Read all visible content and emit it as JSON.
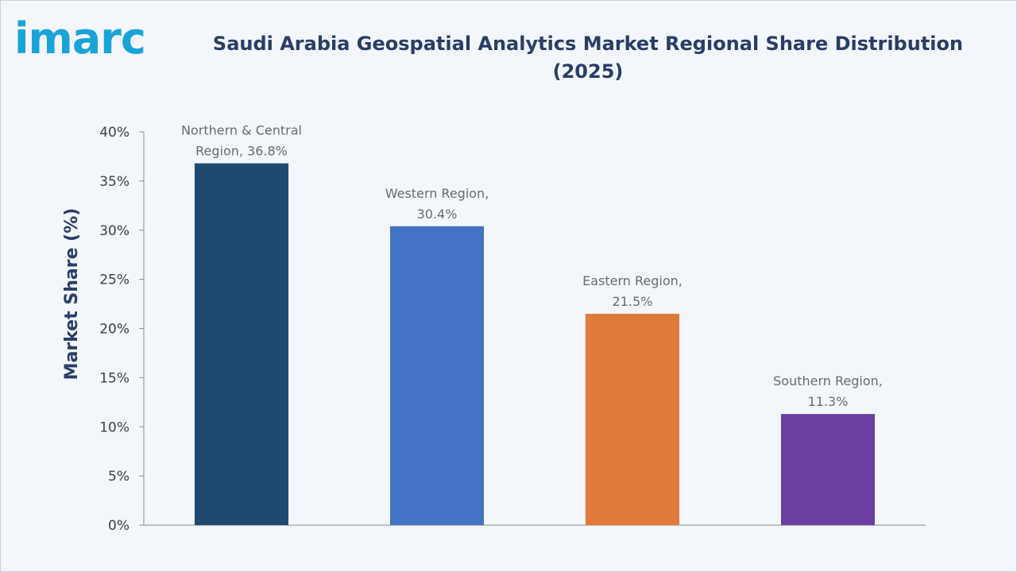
{
  "brand": {
    "logo_text": "imarc"
  },
  "chart_data": {
    "type": "bar",
    "title": "Saudi Arabia Geospatial Analytics Market Regional Share Distribution (2025)",
    "xlabel": "",
    "ylabel": "Market Share (%)",
    "ylim": [
      0,
      40
    ],
    "yticks": [
      0,
      5,
      10,
      15,
      20,
      25,
      30,
      35,
      40
    ],
    "ytick_labels": [
      "0%",
      "5%",
      "10%",
      "15%",
      "20%",
      "25%",
      "30%",
      "35%",
      "40%"
    ],
    "categories": [
      "Northern & Central Region",
      "Western Region",
      "Eastern Region",
      "Southern Region"
    ],
    "values": [
      36.8,
      30.4,
      21.5,
      11.3
    ],
    "data_labels": [
      [
        "Northern & Central",
        "Region, 36.8%"
      ],
      [
        "Western Region,",
        "30.4%"
      ],
      [
        "Eastern Region,",
        "21.5%"
      ],
      [
        "Southern Region,",
        "11.3%"
      ]
    ],
    "colors": [
      "#1f4a70",
      "#4472c4",
      "#e07a3a",
      "#6b3fa0"
    ],
    "grid": false,
    "legend": "none"
  }
}
